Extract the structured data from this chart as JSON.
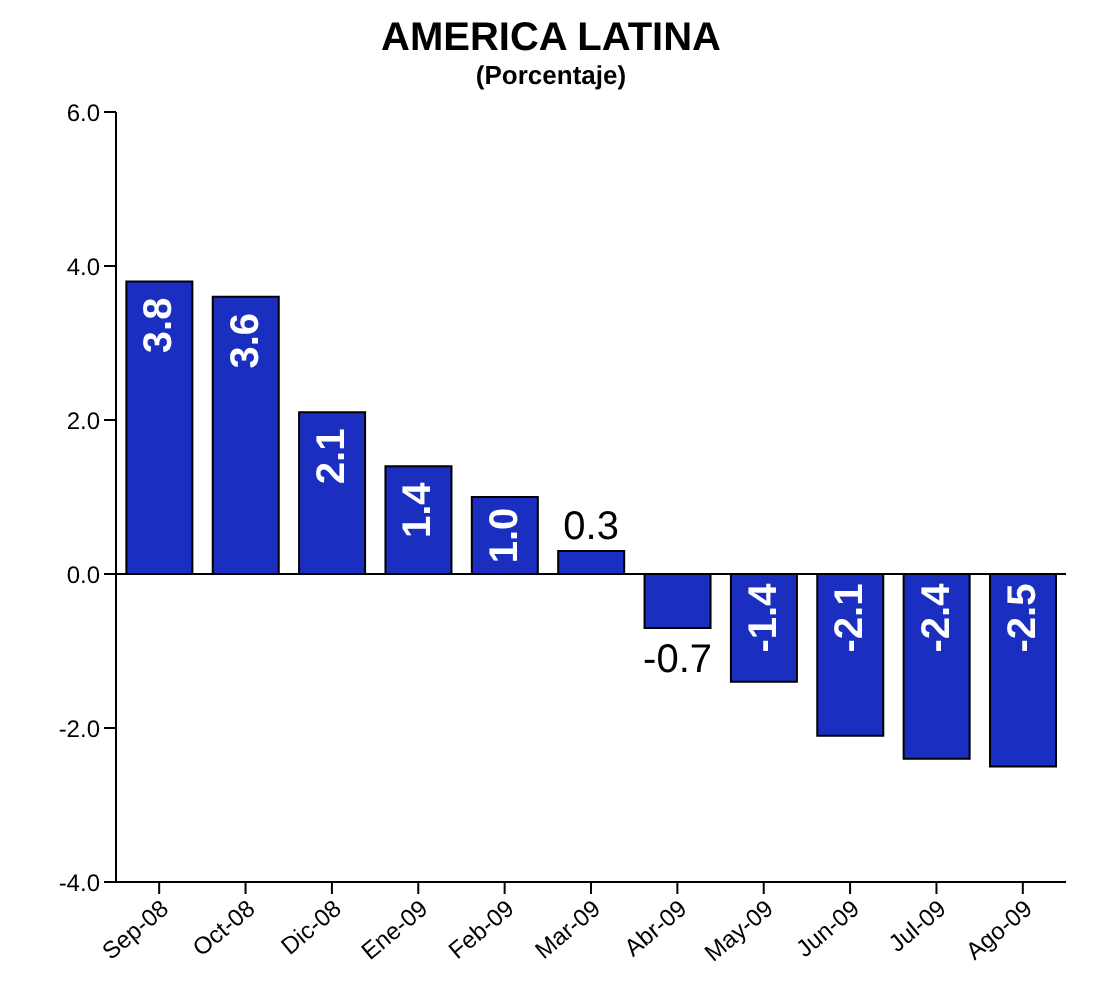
{
  "chart_data": {
    "type": "bar",
    "title": "AMERICA LATINA",
    "subtitle": "(Porcentaje)",
    "categories": [
      "Sep-08",
      "Oct-08",
      "Dic-08",
      "Ene-09",
      "Feb-09",
      "Mar-09",
      "Abr-09",
      "May-09",
      "Jun-09",
      "Jul-09",
      "Ago-09"
    ],
    "values": [
      3.8,
      3.6,
      2.1,
      1.4,
      1.0,
      0.3,
      -0.7,
      -1.4,
      -2.1,
      -2.4,
      -2.5
    ],
    "color": "#1a2fc0",
    "ylim": [
      -4,
      6
    ],
    "yticks": [
      {
        "value": -4,
        "label": "-4.0"
      },
      {
        "value": -2,
        "label": "-2.0"
      },
      {
        "value": 0,
        "label": "0.0"
      },
      {
        "value": 2,
        "label": "2.0"
      },
      {
        "value": 4,
        "label": "4.0"
      },
      {
        "value": 6,
        "label": "6.0"
      }
    ],
    "ref_lines": [
      {
        "axis": "y",
        "value": 0,
        "color": "#000000"
      }
    ],
    "value_labels": [
      "3.8",
      "3.6",
      "2.1",
      "1.4",
      "1.0",
      "0.3",
      "-0.7",
      "-1.4",
      "-2.1",
      "-2.4",
      "-2.5"
    ],
    "grid": false,
    "legend": false
  }
}
